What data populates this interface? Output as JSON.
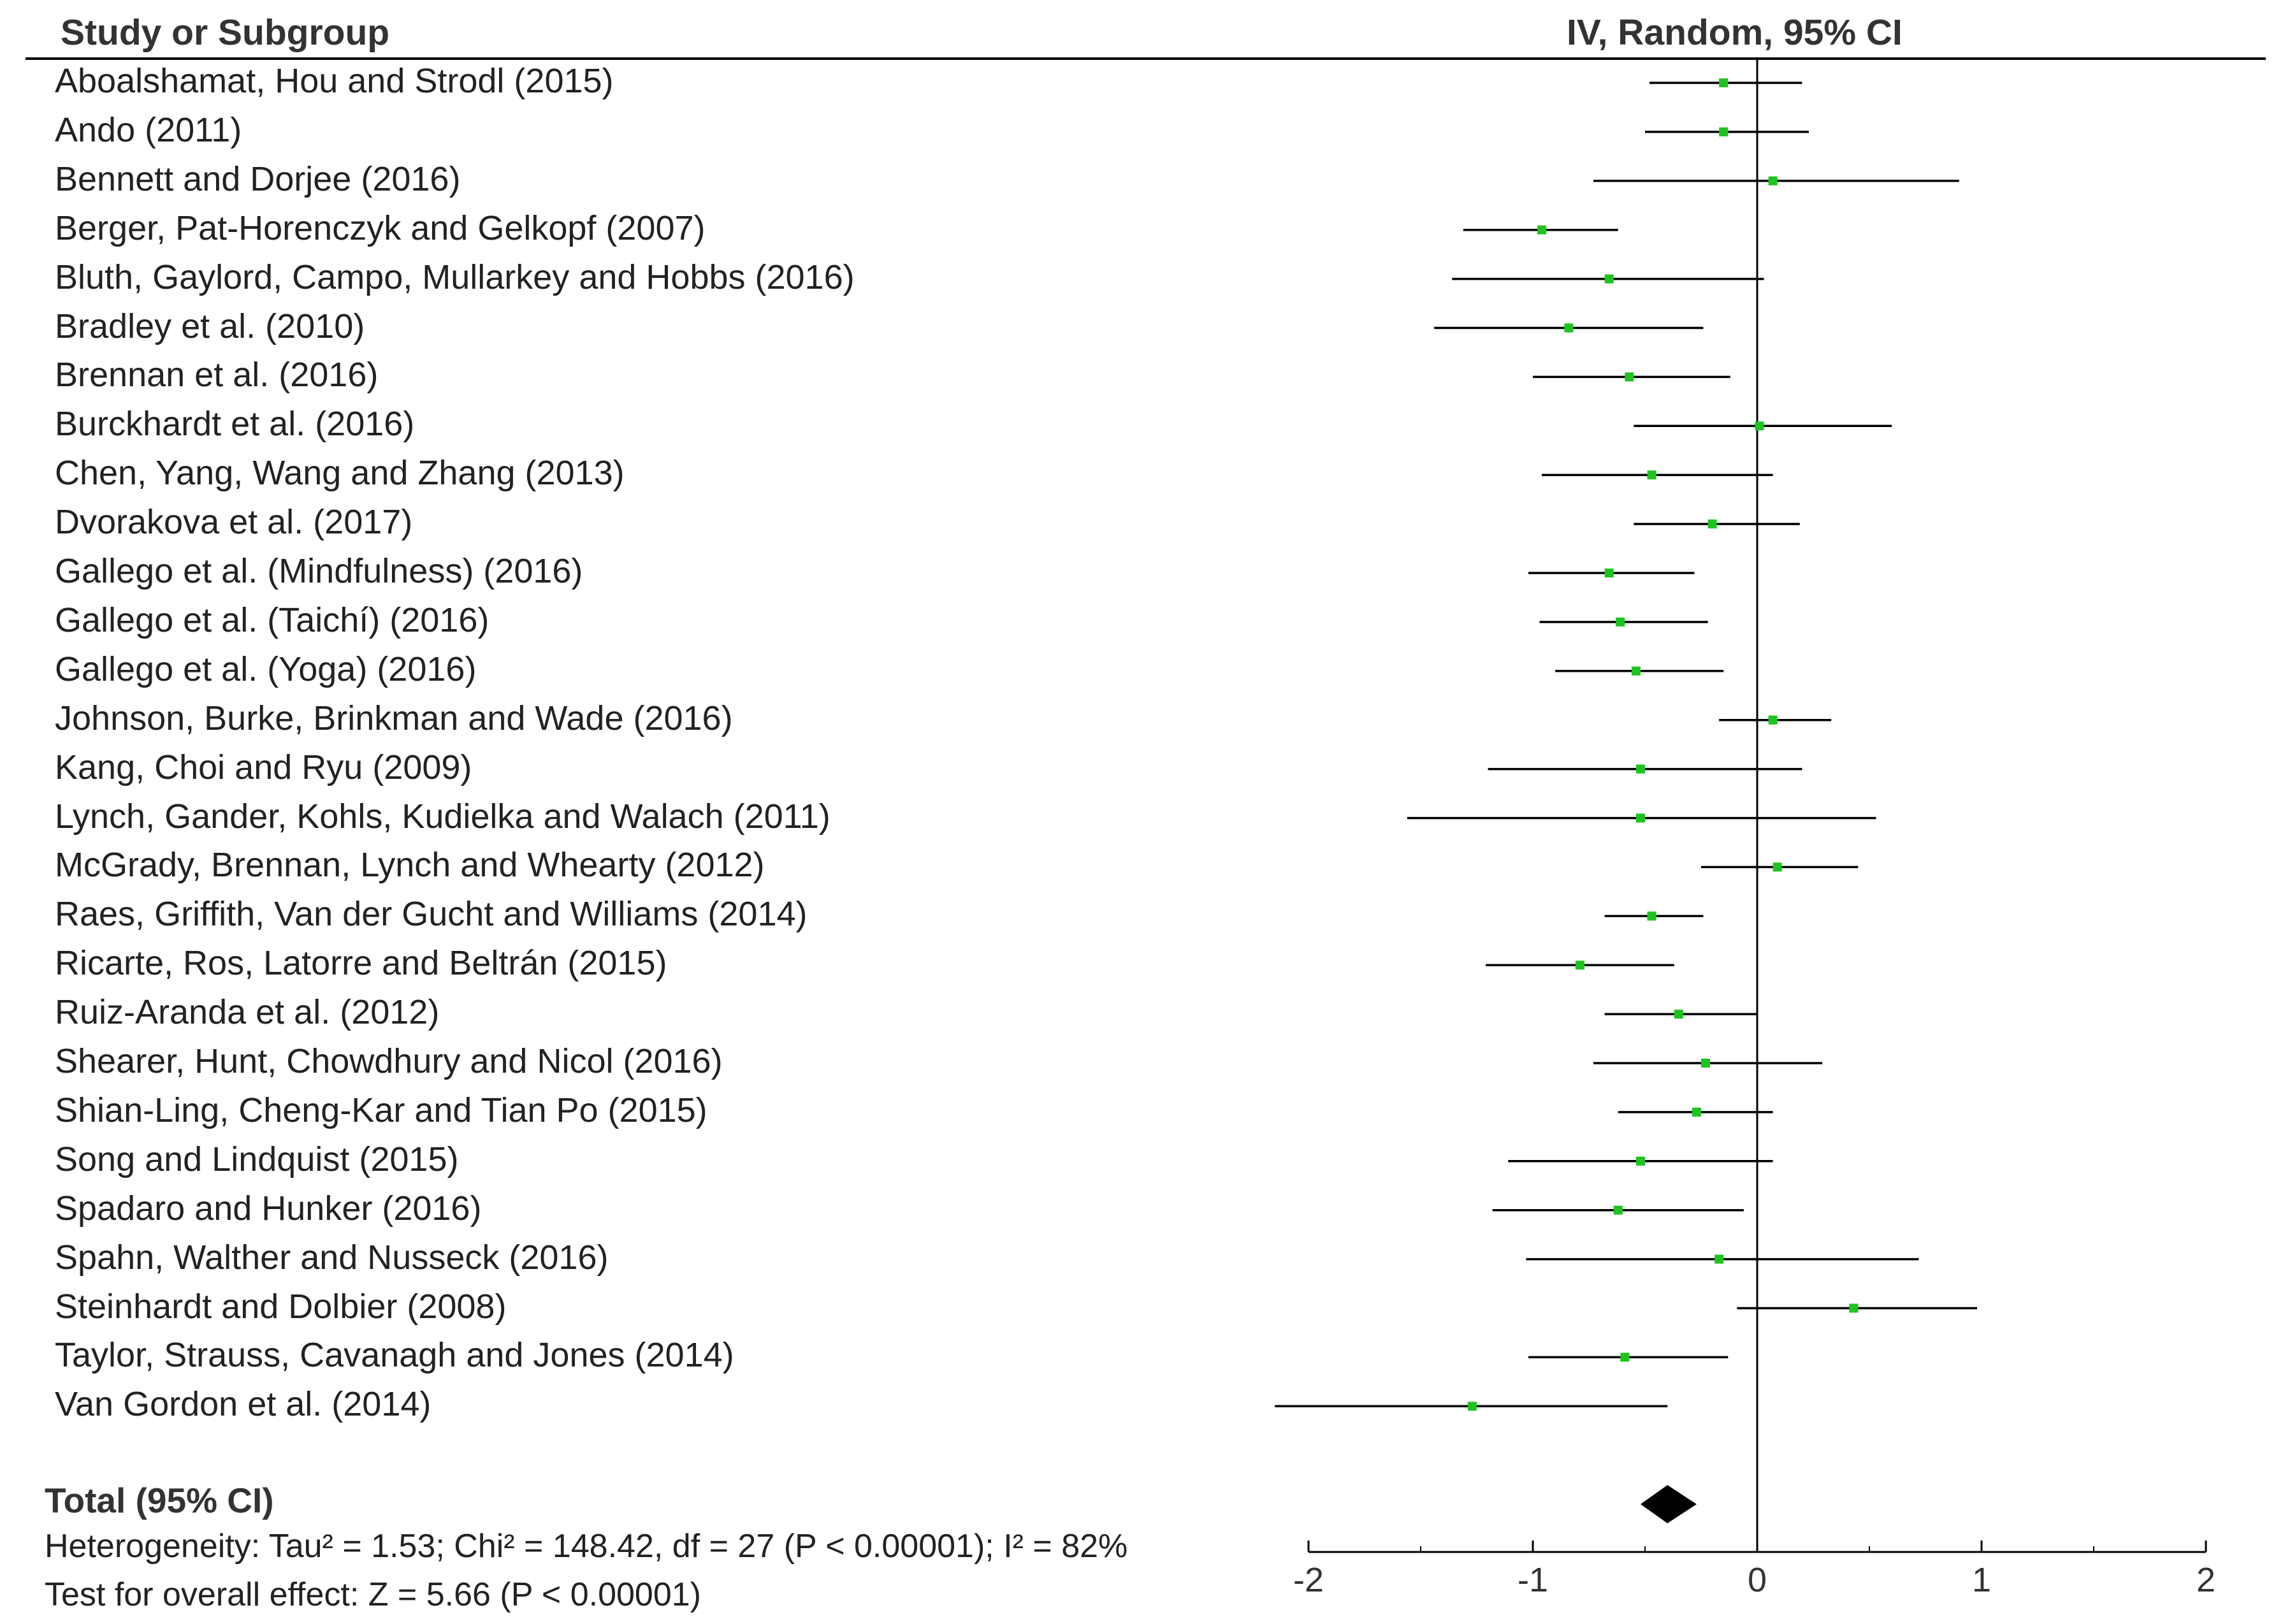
{
  "header": {
    "study_col": "Study or Subgroup",
    "ci_col": "IV, Random, 95% CI"
  },
  "total_label": "Total (95% CI)",
  "heterogeneity": "Heterogeneity: Tau² = 1.53; Chi² = 148.42, df = 27 (P < 0.00001); I² = 82%",
  "overall_effect": "Test for overall effect: Z = 5.66 (P < 0.00001)",
  "colors": {
    "point": "#1fc31f",
    "line": "#000000",
    "diamond": "#000000"
  },
  "chart_data": {
    "type": "forest",
    "xlim": [
      -2,
      2
    ],
    "ticks": [
      -2,
      -1,
      0,
      1,
      2
    ],
    "tick_labels": [
      "-2",
      "-1",
      "0",
      "1",
      "2"
    ],
    "studies": [
      {
        "name": "Aboalshamat, Hou and Strodl (2015)",
        "est": -0.15,
        "lo": -0.48,
        "hi": 0.2
      },
      {
        "name": "Ando (2011)",
        "est": -0.15,
        "lo": -0.5,
        "hi": 0.23
      },
      {
        "name": "Bennett and Dorjee (2016)",
        "est": 0.07,
        "lo": -0.73,
        "hi": 0.9
      },
      {
        "name": "Berger, Pat-Horenczyk and Gelkopf (2007)",
        "est": -0.96,
        "lo": -1.31,
        "hi": -0.62
      },
      {
        "name": "Bluth, Gaylord, Campo, Mullarkey and Hobbs (2016)",
        "est": -0.66,
        "lo": -1.36,
        "hi": 0.03
      },
      {
        "name": "Bradley et al. (2010)",
        "est": -0.84,
        "lo": -1.44,
        "hi": -0.24
      },
      {
        "name": "Brennan et al. (2016)",
        "est": -0.57,
        "lo": -1.0,
        "hi": -0.12
      },
      {
        "name": "Burckhardt et al. (2016)",
        "est": 0.01,
        "lo": -0.55,
        "hi": 0.6
      },
      {
        "name": "Chen, Yang, Wang and Zhang (2013)",
        "est": -0.47,
        "lo": -0.96,
        "hi": 0.07
      },
      {
        "name": "Dvorakova et al. (2017)",
        "est": -0.2,
        "lo": -0.55,
        "hi": 0.19
      },
      {
        "name": "Gallego et al. (Mindfulness) (2016)",
        "est": -0.66,
        "lo": -1.02,
        "hi": -0.28
      },
      {
        "name": "Gallego et al. (Taichí) (2016)",
        "est": -0.61,
        "lo": -0.97,
        "hi": -0.22
      },
      {
        "name": "Gallego et al. (Yoga) (2016)",
        "est": -0.54,
        "lo": -0.9,
        "hi": -0.15
      },
      {
        "name": "Johnson, Burke, Brinkman and Wade (2016)",
        "est": 0.07,
        "lo": -0.17,
        "hi": 0.33
      },
      {
        "name": "Kang, Choi and Ryu (2009)",
        "est": -0.52,
        "lo": -1.2,
        "hi": 0.2
      },
      {
        "name": "Lynch, Gander, Kohls, Kudielka and Walach (2011)",
        "est": -0.52,
        "lo": -1.56,
        "hi": 0.53
      },
      {
        "name": "McGrady, Brennan, Lynch and Whearty (2012)",
        "est": 0.09,
        "lo": -0.25,
        "hi": 0.45
      },
      {
        "name": "Raes, Griffith, Van der Gucht and Williams (2014)",
        "est": -0.47,
        "lo": -0.68,
        "hi": -0.24
      },
      {
        "name": "Ricarte, Ros, Latorre and Beltrán (2015)",
        "est": -0.79,
        "lo": -1.21,
        "hi": -0.37
      },
      {
        "name": "Ruiz-Aranda et al. (2012)",
        "est": -0.35,
        "lo": -0.68,
        "hi": 0.0
      },
      {
        "name": "Shearer, Hunt, Chowdhury and Nicol (2016)",
        "est": -0.23,
        "lo": -0.73,
        "hi": 0.29
      },
      {
        "name": "Shian-Ling, Cheng-Kar and Tian Po (2015)",
        "est": -0.27,
        "lo": -0.62,
        "hi": 0.07
      },
      {
        "name": "Song and Lindquist (2015)",
        "est": -0.52,
        "lo": -1.11,
        "hi": 0.07
      },
      {
        "name": "Spadaro and Hunker (2016)",
        "est": -0.62,
        "lo": -1.18,
        "hi": -0.06
      },
      {
        "name": "Spahn, Walther and Nusseck (2016)",
        "est": -0.17,
        "lo": -1.03,
        "hi": 0.72
      },
      {
        "name": "Steinhardt and Dolbier (2008)",
        "est": 0.43,
        "lo": -0.09,
        "hi": 0.98
      },
      {
        "name": "Taylor, Strauss, Cavanagh and Jones (2014)",
        "est": -0.59,
        "lo": -1.02,
        "hi": -0.13
      },
      {
        "name": "Van Gordon et al. (2014)",
        "est": -1.27,
        "lo": -2.15,
        "hi": -0.4
      }
    ],
    "total": {
      "est": -0.4,
      "lo": -0.52,
      "hi": -0.27
    }
  }
}
